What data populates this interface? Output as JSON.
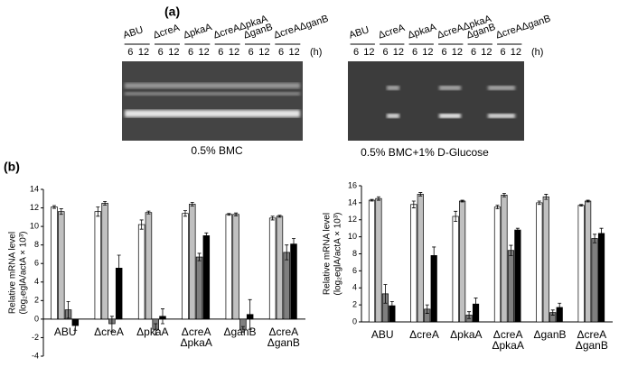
{
  "panel_labels": [
    "(a)",
    "(b)"
  ],
  "gel": {
    "strains": [
      "ABU",
      "ΔcreA",
      "ΔpkaA",
      "ΔcreAΔpkaA",
      "ΔganB",
      "ΔcreAΔganB"
    ],
    "times": [
      "6",
      "12"
    ],
    "unit": "(h)",
    "captions": [
      "0.5% BMC",
      "0.5% BMC+1% D-Glucose"
    ]
  },
  "chart_data": [
    {
      "type": "bar",
      "ylabel": [
        "Relative mRNA level",
        "(log₂eglA/actA × 10³)"
      ],
      "categories": [
        "ABU",
        "ΔcreA",
        "ΔpkaA",
        "ΔcreA ΔpkaA",
        "ΔganB",
        "ΔcreA ΔganB"
      ],
      "ylim": [
        -4,
        14
      ],
      "yticks": [
        -4,
        -2,
        0,
        2,
        4,
        6,
        8,
        10,
        12,
        14
      ],
      "series": [
        {
          "color": "#ffffff",
          "values": [
            12.1,
            11.6,
            10.2,
            11.4,
            11.3,
            10.9
          ],
          "errors": [
            0.15,
            0.5,
            0.5,
            0.3,
            0.1,
            0.2
          ]
        },
        {
          "color": "#c0c0c0",
          "values": [
            11.6,
            12.5,
            11.5,
            12.4,
            11.3,
            11.1
          ],
          "errors": [
            0.3,
            0.2,
            0.15,
            0.2,
            0.15,
            0.1
          ]
        },
        {
          "color": "#7f7f7f",
          "values": [
            1.0,
            -0.5,
            -1.1,
            6.7,
            -1.1,
            7.2
          ],
          "errors": [
            0.9,
            0.8,
            0.6,
            0.4,
            0.3,
            0.8
          ]
        },
        {
          "color": "#000000",
          "values": [
            -0.7,
            5.5,
            0.3,
            9.0,
            0.5,
            8.1
          ],
          "errors": [
            0.5,
            1.4,
            0.8,
            0.3,
            1.6,
            0.6
          ]
        }
      ]
    },
    {
      "type": "bar",
      "ylabel": [
        "Relative mRNA level",
        "(log₂eglA/actA × 10³)"
      ],
      "categories": [
        "ABU",
        "ΔcreA",
        "ΔpkaA",
        "ΔcreA ΔpkaA",
        "ΔganB",
        "ΔcreA ΔganB"
      ],
      "ylim": [
        0,
        16
      ],
      "yticks": [
        0,
        2,
        4,
        6,
        8,
        10,
        12,
        14,
        16
      ],
      "series": [
        {
          "color": "#ffffff",
          "values": [
            14.3,
            13.8,
            12.4,
            13.5,
            14.0,
            13.7
          ],
          "errors": [
            0.1,
            0.4,
            0.6,
            0.2,
            0.2,
            0.1
          ]
        },
        {
          "color": "#c0c0c0",
          "values": [
            14.5,
            15.0,
            14.2,
            14.9,
            14.7,
            14.2
          ],
          "errors": [
            0.2,
            0.2,
            0.1,
            0.2,
            0.3,
            0.1
          ]
        },
        {
          "color": "#7f7f7f",
          "values": [
            3.3,
            1.5,
            0.8,
            8.4,
            1.1,
            9.8
          ],
          "errors": [
            1.1,
            0.5,
            0.4,
            0.6,
            0.3,
            0.5
          ]
        },
        {
          "color": "#000000",
          "values": [
            1.9,
            7.8,
            2.1,
            10.8,
            1.7,
            10.4
          ],
          "errors": [
            0.5,
            1.0,
            0.7,
            0.2,
            0.5,
            0.6
          ]
        }
      ]
    }
  ]
}
